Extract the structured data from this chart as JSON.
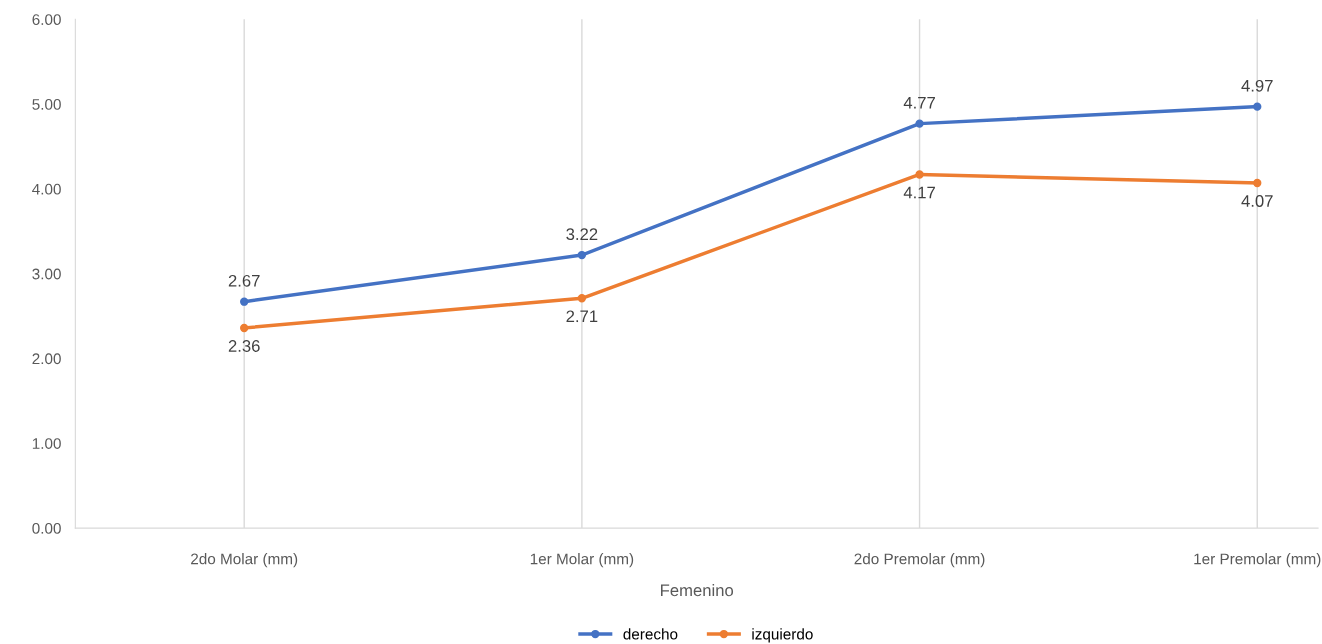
{
  "chart_data": {
    "type": "line",
    "xlabel": "Femenino",
    "categories": [
      "2do Molar (mm)",
      "1er Molar (mm)",
      "2do Premolar (mm)",
      "1er Premolar (mm)"
    ],
    "series": [
      {
        "name": "derecho",
        "color": "#4472c4",
        "values": [
          2.67,
          3.22,
          4.77,
          4.97
        ]
      },
      {
        "name": "izquierdo",
        "color": "#ed7d31",
        "values": [
          2.36,
          2.71,
          4.17,
          4.07
        ]
      }
    ],
    "ylim": [
      0,
      6
    ],
    "yticks": [
      {
        "value": 0,
        "label": "0.00"
      },
      {
        "value": 1,
        "label": "1.00"
      },
      {
        "value": 2,
        "label": "2.00"
      },
      {
        "value": 3,
        "label": "3.00"
      },
      {
        "value": 4,
        "label": "4.00"
      },
      {
        "value": 5,
        "label": "5.00"
      },
      {
        "value": 6,
        "label": "6.00"
      }
    ],
    "grid": "x",
    "legend": "bottom",
    "marker": "circle",
    "line_style": "solid",
    "data_labels": true
  }
}
